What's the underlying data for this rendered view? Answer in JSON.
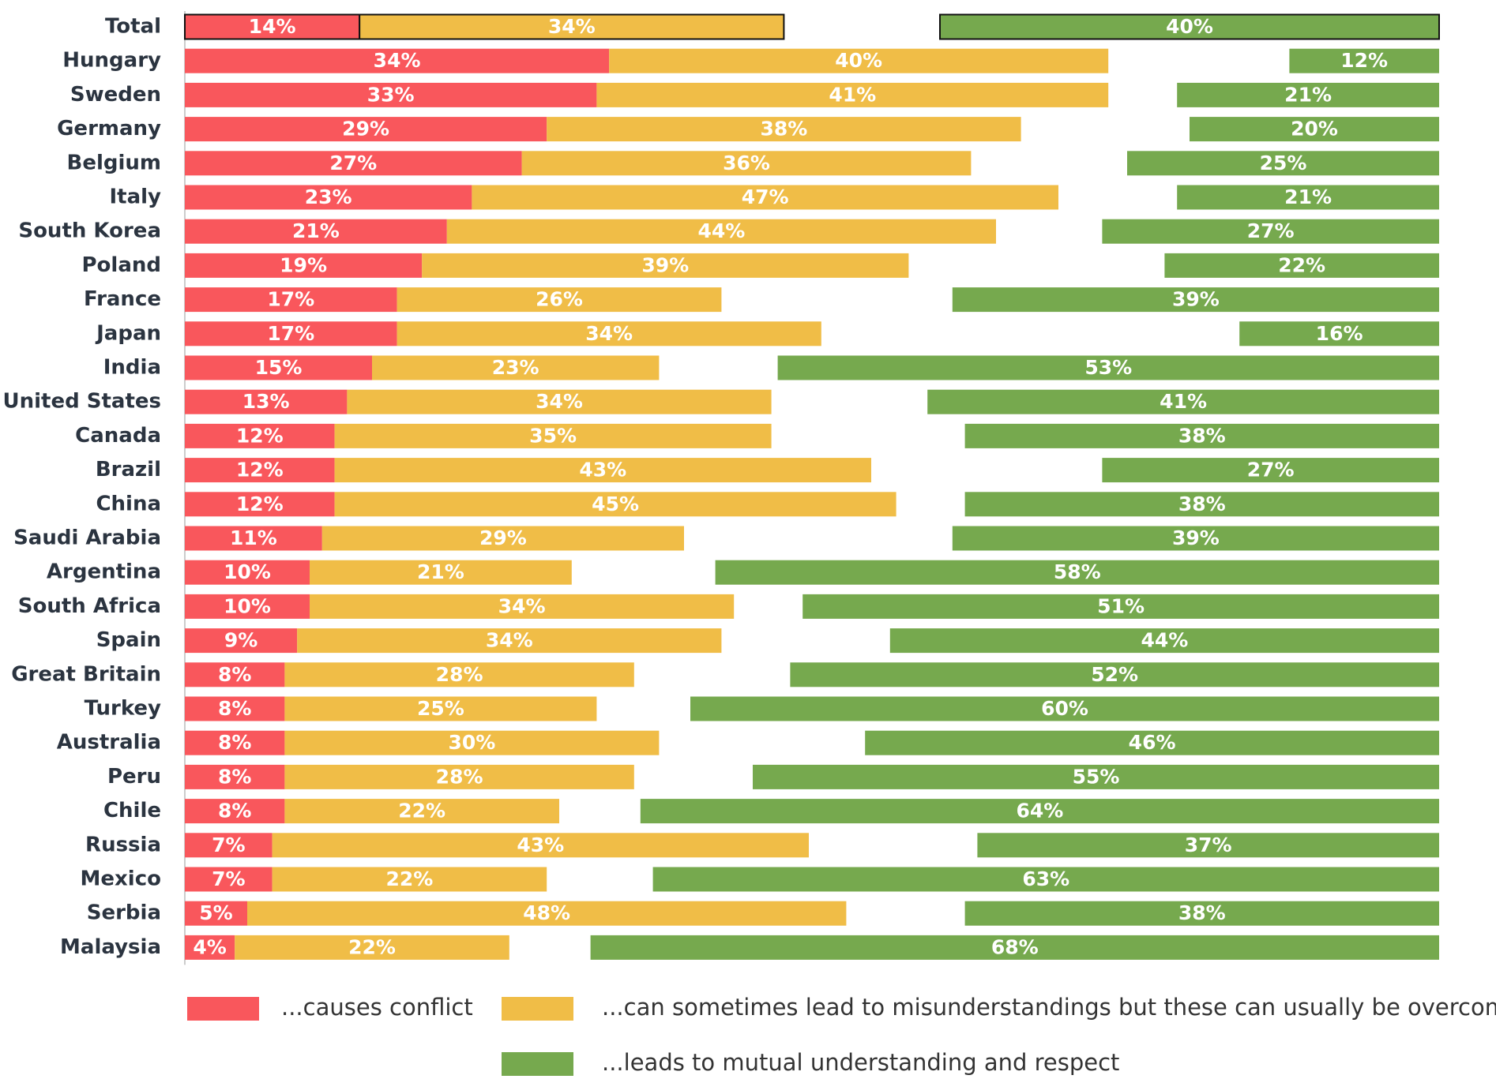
{
  "chart_data": {
    "type": "bar",
    "categories": [
      "Total",
      "Hungary",
      "Sweden",
      "Germany",
      "Belgium",
      "Italy",
      "South Korea",
      "Poland",
      "France",
      "Japan",
      "India",
      "United States",
      "Canada",
      "Brazil",
      "China",
      "Saudi Arabia",
      "Argentina",
      "South Africa",
      "Spain",
      "Great Britain",
      "Turkey",
      "Australia",
      "Peru",
      "Chile",
      "Russia",
      "Mexico",
      "Serbia",
      "Malaysia"
    ],
    "series": [
      {
        "name": "...causes conflict",
        "color": "#f9575c",
        "values": [
          14,
          34,
          33,
          29,
          27,
          23,
          21,
          19,
          17,
          17,
          15,
          13,
          12,
          12,
          12,
          11,
          10,
          10,
          9,
          8,
          8,
          8,
          8,
          8,
          7,
          7,
          5,
          4
        ],
        "value_labels": [
          "14%",
          "34%",
          "33%",
          "29%",
          "27%",
          "23%",
          "21%",
          "19%",
          "17%",
          "17%",
          "15%",
          "13%",
          "12%",
          "12%",
          "12%",
          "11%",
          "10%",
          "10%",
          "9%",
          "8%",
          "8%",
          "8%",
          "8%",
          "8%",
          "7%",
          "7%",
          "5%",
          "4%"
        ]
      },
      {
        "name": "...can sometimes lead to misunderstandings but these can usually be overcome",
        "color": "#f0bd47",
        "values": [
          34,
          40,
          41,
          38,
          36,
          47,
          44,
          39,
          26,
          34,
          23,
          34,
          35,
          43,
          45,
          29,
          21,
          34,
          34,
          28,
          25,
          30,
          28,
          22,
          43,
          22,
          48,
          22
        ],
        "value_labels": [
          "34%",
          "40%",
          "41%",
          "38%",
          "36%",
          "47%",
          "44%",
          "39%",
          "26%",
          "34%",
          "23%",
          "34%",
          "35%",
          "43%",
          "45%",
          "29%",
          "21%",
          "34%",
          "34%",
          "28%",
          "25%",
          "30%",
          "28%",
          "22%",
          "43%",
          "22%",
          "48%",
          "22%"
        ]
      },
      {
        "name": "...leads to mutual understanding and respect",
        "color": "#76a94e",
        "values": [
          40,
          12,
          21,
          20,
          25,
          21,
          27,
          22,
          39,
          16,
          53,
          41,
          38,
          27,
          38,
          39,
          58,
          51,
          44,
          52,
          60,
          46,
          55,
          64,
          37,
          63,
          38,
          68
        ],
        "value_labels": [
          "40%",
          "12%",
          "21%",
          "20%",
          "25%",
          "21%",
          "27%",
          "22%",
          "39%",
          "16%",
          "53%",
          "41%",
          "38%",
          "27%",
          "38%",
          "39%",
          "58%",
          "51%",
          "44%",
          "52%",
          "60%",
          "46%",
          "55%",
          "64%",
          "37%",
          "63%",
          "38%",
          "68%"
        ]
      }
    ]
  }
}
